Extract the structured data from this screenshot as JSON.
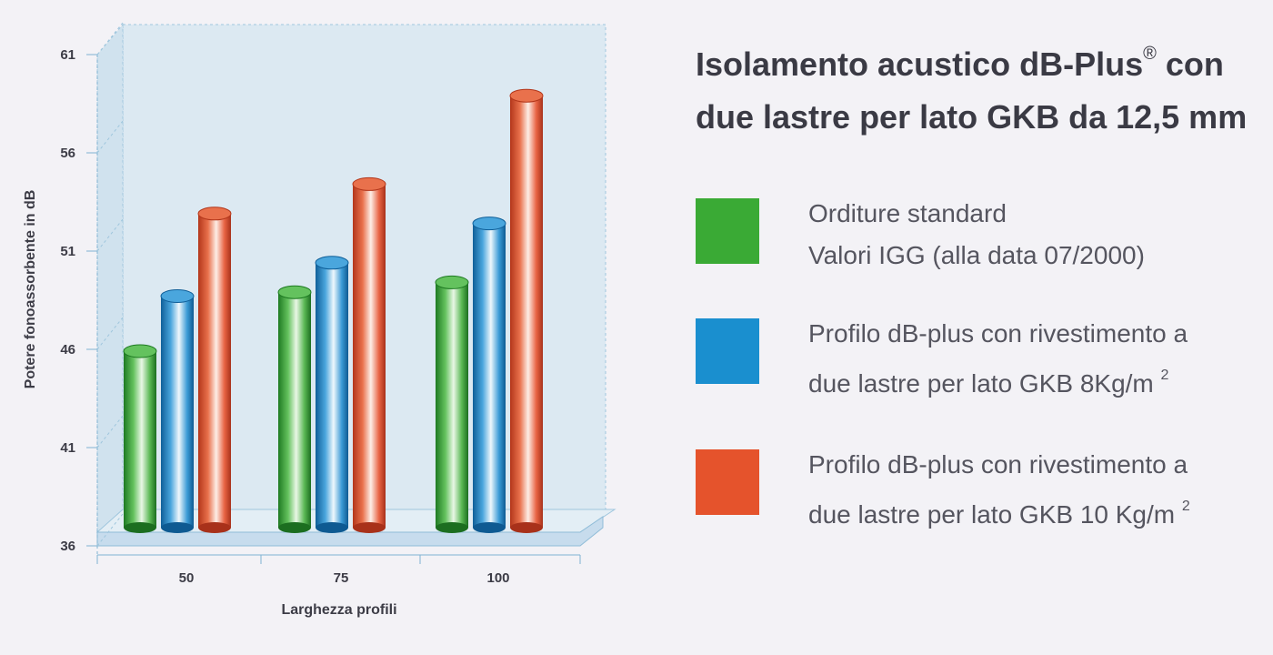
{
  "chart_data": {
    "type": "bar",
    "categories": [
      "50",
      "75",
      "100"
    ],
    "series": [
      {
        "name": "Orditure standard Valori IGG (alla data 07/2000)",
        "values": [
          46,
          49,
          49.5
        ],
        "color": "#3aaa35"
      },
      {
        "name": "Profilo dB-plus con rivestimento a due lastre per lato GKB 8Kg/m²",
        "values": [
          48.8,
          50.5,
          52.5
        ],
        "color": "#1a8fcf"
      },
      {
        "name": "Profilo dB-plus con rivestimento a due lastre per lato GKB 10 Kg/m²",
        "values": [
          53,
          54.5,
          59
        ],
        "color": "#e5532c"
      }
    ],
    "yticks": [
      36,
      41,
      46,
      51,
      56,
      61
    ],
    "ylim": [
      36,
      61
    ],
    "xlabel": "Larghezza profili",
    "ylabel": "Potere fonoassorbente in dB",
    "title_line1": "Isolamento acustico dB-Plus",
    "title_mark": "®",
    "title_line1_end": "con",
    "title_line2": "due lastre per lato GKB da 12,5 mm",
    "grid": false,
    "legend_position": "right"
  },
  "legend": [
    {
      "line1": "Orditure standard",
      "line2": "Valori IGG (alla data 07/2000)",
      "sup": "",
      "color": "#3aaa35"
    },
    {
      "line1": "Profilo dB-plus con rivestimento a",
      "line2": "due lastre per lato GKB  8Kg/m",
      "sup": "2",
      "color": "#1a8fcf"
    },
    {
      "line1": "Profilo dB-plus con rivestimento a",
      "line2": "due lastre per lato GKB  10 Kg/m",
      "sup": "2",
      "color": "#e5532c"
    }
  ]
}
